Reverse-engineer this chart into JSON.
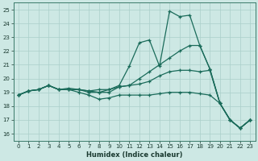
{
  "xlabel": "Humidex (Indice chaleur)",
  "bg_color": "#cde8e4",
  "grid_color": "#aacfca",
  "line_color": "#1a6b5a",
  "xlim": [
    -0.5,
    23.5
  ],
  "ylim": [
    15.5,
    25.5
  ],
  "xticks": [
    0,
    1,
    2,
    3,
    4,
    5,
    6,
    7,
    8,
    9,
    10,
    11,
    12,
    13,
    14,
    15,
    16,
    17,
    18,
    19,
    20,
    21,
    22,
    23
  ],
  "yticks": [
    16,
    17,
    18,
    19,
    20,
    21,
    22,
    23,
    24,
    25
  ],
  "series": [
    [
      18.8,
      19.1,
      19.2,
      19.5,
      19.2,
      19.3,
      19.2,
      19.1,
      19.2,
      19.2,
      19.5,
      20.9,
      22.6,
      22.8,
      20.9,
      24.9,
      24.5,
      24.6,
      22.4,
      20.7,
      18.2,
      17.0,
      16.4,
      17.0
    ],
    [
      18.8,
      19.1,
      19.2,
      19.5,
      19.2,
      19.2,
      19.2,
      19.1,
      19.0,
      19.2,
      19.4,
      19.5,
      20.0,
      20.5,
      21.0,
      21.5,
      22.0,
      22.4,
      22.4,
      20.7,
      18.2,
      17.0,
      16.4,
      17.0
    ],
    [
      18.8,
      19.1,
      19.2,
      19.5,
      19.2,
      19.2,
      19.2,
      19.0,
      19.0,
      19.0,
      19.4,
      19.5,
      19.6,
      19.8,
      20.2,
      20.5,
      20.6,
      20.6,
      20.5,
      20.6,
      18.2,
      17.0,
      16.4,
      17.0
    ],
    [
      18.8,
      19.1,
      19.2,
      19.5,
      19.2,
      19.2,
      19.0,
      18.8,
      18.5,
      18.6,
      18.8,
      18.8,
      18.8,
      18.8,
      18.9,
      19.0,
      19.0,
      19.0,
      18.9,
      18.8,
      18.2,
      17.0,
      16.4,
      17.0
    ]
  ]
}
